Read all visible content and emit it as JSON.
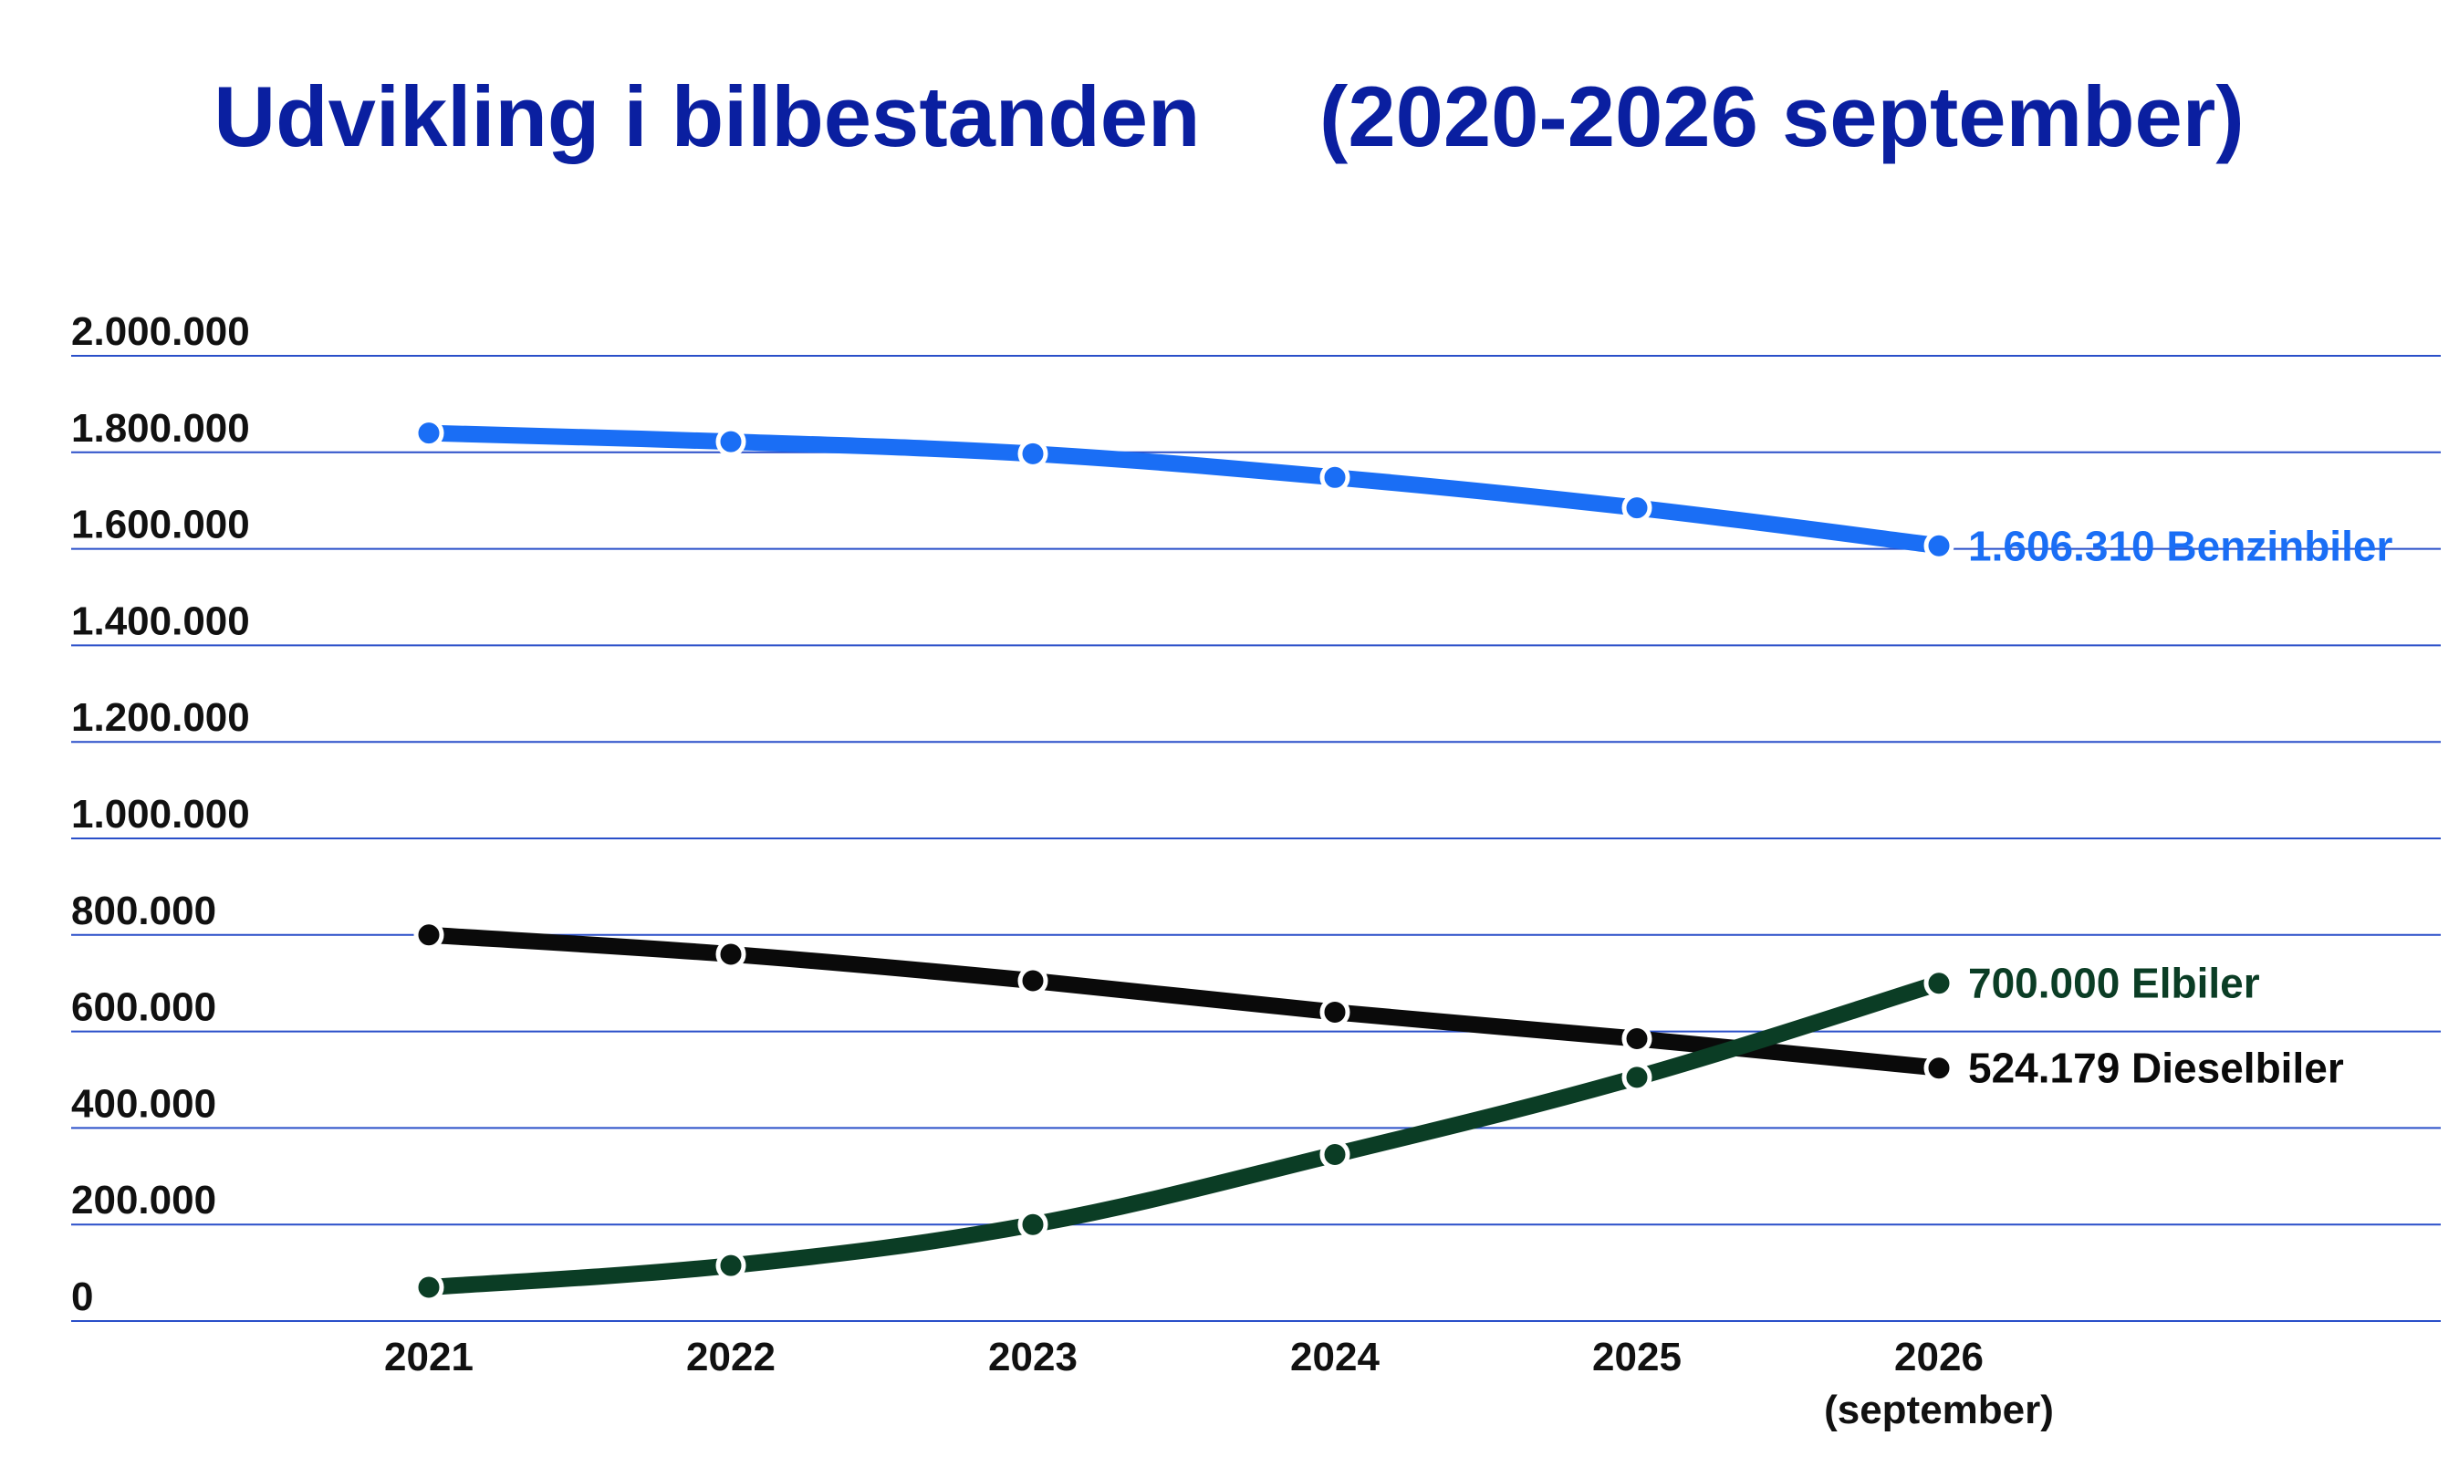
{
  "chart_data": {
    "type": "line",
    "title": "Udvikling i bilbestanden     (2020-2026 september)",
    "title_color": "#0a1fa0",
    "xlabel": "",
    "ylabel": "",
    "ylim": [
      0,
      2000000
    ],
    "yticks": [
      0,
      200000,
      400000,
      600000,
      800000,
      1000000,
      1200000,
      1400000,
      1600000,
      1800000,
      2000000
    ],
    "ytick_labels": [
      "0",
      "200.000",
      "400.000",
      "600.000",
      "800.000",
      "1.000.000",
      "1.200.000",
      "1.400.000",
      "1.600.000",
      "1.800.000",
      "2.000.000"
    ],
    "categories": [
      "2021",
      "2022",
      "2023",
      "2024",
      "2025",
      "2026"
    ],
    "category_sublabels": [
      "",
      "",
      "",
      "",
      "",
      "(september)"
    ],
    "grid": true,
    "grid_color": "#2a4fc9",
    "legend": "none",
    "series": [
      {
        "color": "#1a6ef5",
        "values": [
          1840000,
          1822000,
          1797000,
          1748000,
          1685000,
          1606310
        ],
        "end_label": "1.606.310 Benzinbiler"
      },
      {
        "color": "#0a0a0a",
        "values": [
          800000,
          760000,
          705000,
          640000,
          585000,
          524179
        ],
        "end_label": "524.179 Dieselbiler"
      },
      {
        "color": "#0b3d25",
        "values": [
          70000,
          115000,
          200000,
          345000,
          505000,
          700000
        ],
        "end_label": "700.000 Elbiler"
      }
    ]
  }
}
